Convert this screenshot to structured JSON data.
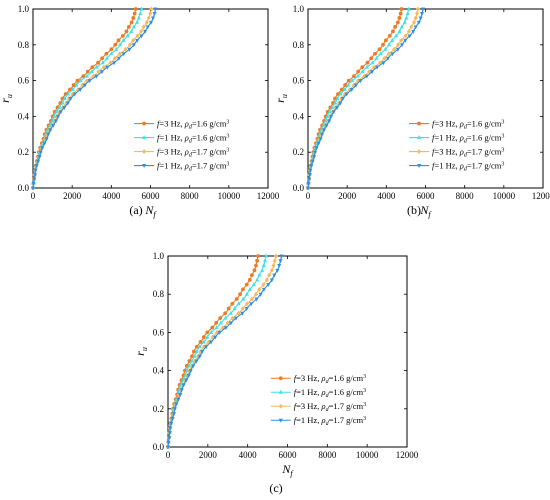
{
  "colors": {
    "f3_d16": "#f07a23",
    "f1_d16": "#3fe0e6",
    "f3_d17": "#f7b85a",
    "f1_d17": "#2c8fe8"
  },
  "legend_labels": [
    {
      "pre": "f",
      "mid": "=3 Hz, ",
      "rho": "ρ",
      "sub": "d",
      "post": "=1.6 g/cm",
      "sup": "3"
    },
    {
      "pre": "f",
      "mid": "=1 Hz, ",
      "rho": "ρ",
      "sub": "d",
      "post": "=1.6 g/cm",
      "sup": "3"
    },
    {
      "pre": "f",
      "mid": "=3 Hz, ",
      "rho": "ρ",
      "sub": "d",
      "post": "=1.7 g/cm",
      "sup": "3"
    },
    {
      "pre": "f",
      "mid": "=1 Hz, ",
      "rho": "ρ",
      "sub": "d",
      "post": "=1.7 g/cm",
      "sup": "3"
    }
  ],
  "chart_data": [
    {
      "type": "line",
      "panel_label": "(a)",
      "xlabel": {
        "main": "N",
        "sub": "f"
      },
      "ylabel": {
        "main": "r",
        "sub": "u"
      },
      "xlim": [
        0,
        12000
      ],
      "ylim": [
        0,
        1.0
      ],
      "xticks": [
        0,
        2000,
        4000,
        6000,
        8000,
        10000,
        12000
      ],
      "yticks": [
        0.0,
        0.2,
        0.4,
        0.6,
        0.8,
        1.0
      ],
      "legend_position": "lower-right",
      "series": [
        {
          "name_index": 0,
          "color_key": "f3_d16",
          "marker": "circle",
          "x": [
            0,
            100,
            300,
            600,
            1000,
            1500,
            2100,
            2800,
            3500,
            4200,
            4800,
            5100,
            5200,
            5250
          ],
          "y": [
            0.0,
            0.1,
            0.2,
            0.3,
            0.4,
            0.5,
            0.58,
            0.65,
            0.72,
            0.8,
            0.88,
            0.94,
            0.98,
            1.0
          ]
        },
        {
          "name_index": 1,
          "color_key": "f1_d16",
          "marker": "triangle-up",
          "x": [
            0,
            110,
            330,
            660,
            1080,
            1620,
            2250,
            3000,
            3750,
            4450,
            5050,
            5380,
            5490,
            5550
          ],
          "y": [
            0.0,
            0.1,
            0.2,
            0.3,
            0.4,
            0.5,
            0.58,
            0.65,
            0.72,
            0.8,
            0.88,
            0.94,
            0.98,
            1.0
          ]
        },
        {
          "name_index": 2,
          "color_key": "f3_d17",
          "marker": "diamond",
          "x": [
            0,
            125,
            375,
            740,
            1220,
            1830,
            2550,
            3350,
            4150,
            4950,
            5550,
            5880,
            6000,
            6050
          ],
          "y": [
            0.0,
            0.1,
            0.2,
            0.3,
            0.4,
            0.5,
            0.58,
            0.65,
            0.72,
            0.8,
            0.88,
            0.94,
            0.98,
            1.0
          ]
        },
        {
          "name_index": 3,
          "color_key": "f1_d17",
          "marker": "triangle-down",
          "x": [
            0,
            130,
            390,
            780,
            1280,
            1920,
            2680,
            3520,
            4350,
            5150,
            5750,
            6100,
            6220,
            6250
          ],
          "y": [
            0.0,
            0.1,
            0.2,
            0.3,
            0.4,
            0.5,
            0.58,
            0.65,
            0.72,
            0.8,
            0.88,
            0.94,
            0.98,
            1.0
          ]
        }
      ]
    },
    {
      "type": "line",
      "panel_label": "(b)",
      "xlabel": {
        "main": "N",
        "sub": "f"
      },
      "ylabel": {
        "main": "r",
        "sub": "u"
      },
      "xlim": [
        0,
        12000
      ],
      "ylim": [
        0,
        1.0
      ],
      "xticks": [
        0,
        2000,
        4000,
        6000,
        8000,
        10000,
        12000
      ],
      "yticks": [
        0.0,
        0.2,
        0.4,
        0.6,
        0.8,
        1.0
      ],
      "legend_position": "lower-right",
      "series": [
        {
          "name_index": 0,
          "color_key": "f3_d16",
          "marker": "circle",
          "x": [
            0,
            90,
            270,
            540,
            900,
            1380,
            1920,
            2560,
            3200,
            3830,
            4360,
            4650,
            4740,
            4780
          ],
          "y": [
            0.0,
            0.1,
            0.2,
            0.3,
            0.4,
            0.5,
            0.58,
            0.65,
            0.72,
            0.8,
            0.88,
            0.94,
            0.98,
            1.0
          ]
        },
        {
          "name_index": 1,
          "color_key": "f1_d16",
          "marker": "triangle-up",
          "x": [
            0,
            100,
            300,
            600,
            990,
            1500,
            2080,
            2780,
            3470,
            4140,
            4700,
            5000,
            5100,
            5150
          ],
          "y": [
            0.0,
            0.1,
            0.2,
            0.3,
            0.4,
            0.5,
            0.58,
            0.65,
            0.72,
            0.8,
            0.88,
            0.94,
            0.98,
            1.0
          ]
        },
        {
          "name_index": 2,
          "color_key": "f3_d17",
          "marker": "diamond",
          "x": [
            0,
            115,
            345,
            690,
            1130,
            1700,
            2370,
            3120,
            3870,
            4600,
            5180,
            5480,
            5580,
            5620
          ],
          "y": [
            0.0,
            0.1,
            0.2,
            0.3,
            0.4,
            0.5,
            0.58,
            0.65,
            0.72,
            0.8,
            0.88,
            0.94,
            0.98,
            1.0
          ]
        },
        {
          "name_index": 3,
          "color_key": "f1_d17",
          "marker": "triangle-down",
          "x": [
            0,
            120,
            360,
            720,
            1180,
            1780,
            2480,
            3270,
            4050,
            4800,
            5400,
            5730,
            5830,
            5870
          ],
          "y": [
            0.0,
            0.1,
            0.2,
            0.3,
            0.4,
            0.5,
            0.58,
            0.65,
            0.72,
            0.8,
            0.88,
            0.94,
            0.98,
            1.0
          ]
        }
      ]
    },
    {
      "type": "line",
      "panel_label": "(c)",
      "xlabel": {
        "main": "N",
        "sub": "f"
      },
      "ylabel": {
        "main": "r",
        "sub": "u"
      },
      "xlim": [
        0,
        12000
      ],
      "ylim": [
        0,
        1.0
      ],
      "xticks": [
        0,
        2000,
        4000,
        6000,
        8000,
        10000,
        12000
      ],
      "yticks": [
        0.0,
        0.2,
        0.4,
        0.6,
        0.8,
        1.0
      ],
      "legend_position": "lower-right",
      "series": [
        {
          "name_index": 0,
          "color_key": "f3_d16",
          "marker": "circle",
          "x": [
            0,
            85,
            255,
            510,
            850,
            1300,
            1820,
            2420,
            3020,
            3620,
            4130,
            4400,
            4480,
            4520
          ],
          "y": [
            0.0,
            0.1,
            0.2,
            0.3,
            0.4,
            0.5,
            0.58,
            0.65,
            0.72,
            0.8,
            0.88,
            0.94,
            0.98,
            1.0
          ]
        },
        {
          "name_index": 1,
          "color_key": "f1_d16",
          "marker": "triangle-up",
          "x": [
            0,
            95,
            285,
            570,
            950,
            1440,
            2000,
            2660,
            3320,
            3960,
            4500,
            4790,
            4880,
            4930
          ],
          "y": [
            0.0,
            0.1,
            0.2,
            0.3,
            0.4,
            0.5,
            0.58,
            0.65,
            0.72,
            0.8,
            0.88,
            0.94,
            0.98,
            1.0
          ]
        },
        {
          "name_index": 2,
          "color_key": "f3_d17",
          "marker": "diamond",
          "x": [
            0,
            110,
            330,
            660,
            1080,
            1630,
            2270,
            3000,
            3720,
            4420,
            4990,
            5280,
            5370,
            5420
          ],
          "y": [
            0.0,
            0.1,
            0.2,
            0.3,
            0.4,
            0.5,
            0.58,
            0.65,
            0.72,
            0.8,
            0.88,
            0.94,
            0.98,
            1.0
          ]
        },
        {
          "name_index": 3,
          "color_key": "f1_d17",
          "marker": "triangle-down",
          "x": [
            0,
            115,
            345,
            690,
            1140,
            1720,
            2400,
            3160,
            3920,
            4650,
            5240,
            5560,
            5660,
            5700
          ],
          "y": [
            0.0,
            0.1,
            0.2,
            0.3,
            0.4,
            0.5,
            0.58,
            0.65,
            0.72,
            0.8,
            0.88,
            0.94,
            0.98,
            1.0
          ]
        }
      ]
    }
  ]
}
